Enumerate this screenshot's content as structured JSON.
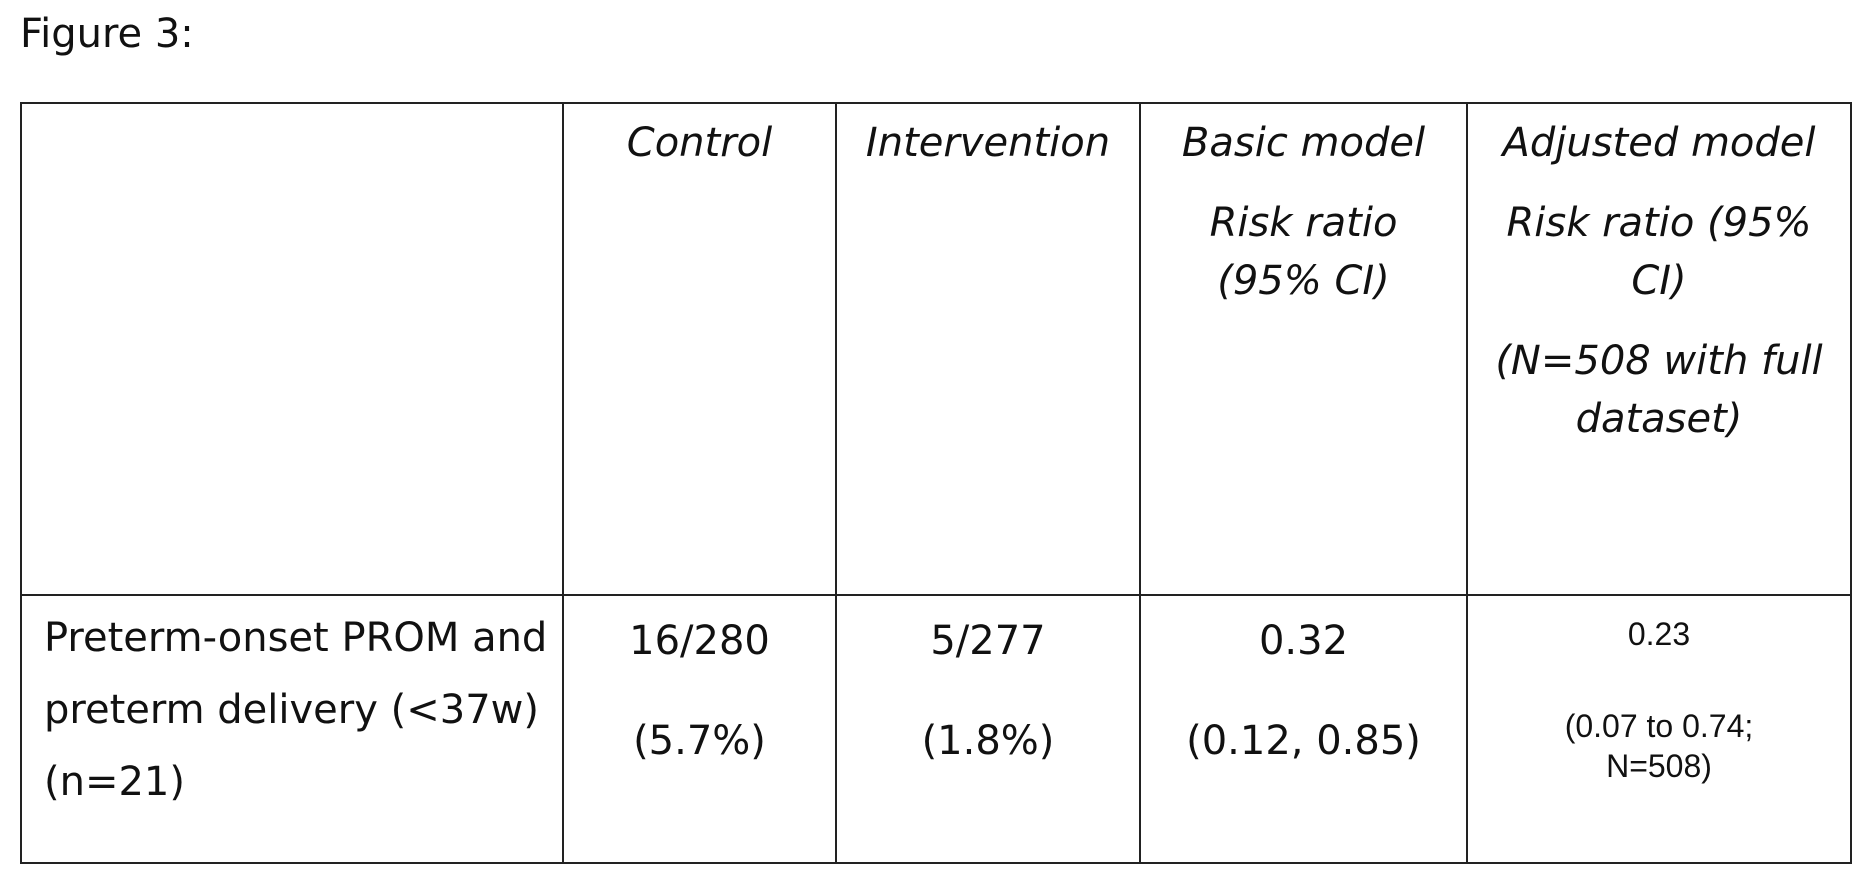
{
  "figure_title": "Figure 3:",
  "table": {
    "header": {
      "row_label": "",
      "control": "Control",
      "intervention": "Intervention",
      "basic_model": {
        "line1": "Basic model",
        "line2": "Risk ratio (95% CI)"
      },
      "adjusted_model": {
        "line1": "Adjusted model",
        "line2": "Risk ratio (95% CI)",
        "line3": "(N=508 with full dataset)"
      }
    },
    "rows": [
      {
        "label": "Preterm-onset PROM and preterm delivery (<37w) (n=21)",
        "control": {
          "count": "16/280",
          "pct": "(5.7%)"
        },
        "intervention": {
          "count": "5/277",
          "pct": "(1.8%)"
        },
        "basic_model": {
          "rr": "0.32",
          "ci": "(0.12, 0.85)"
        },
        "adjusted_model": {
          "rr": "0.23",
          "ci": "(0.07 to 0.74; N=508)"
        }
      }
    ]
  }
}
